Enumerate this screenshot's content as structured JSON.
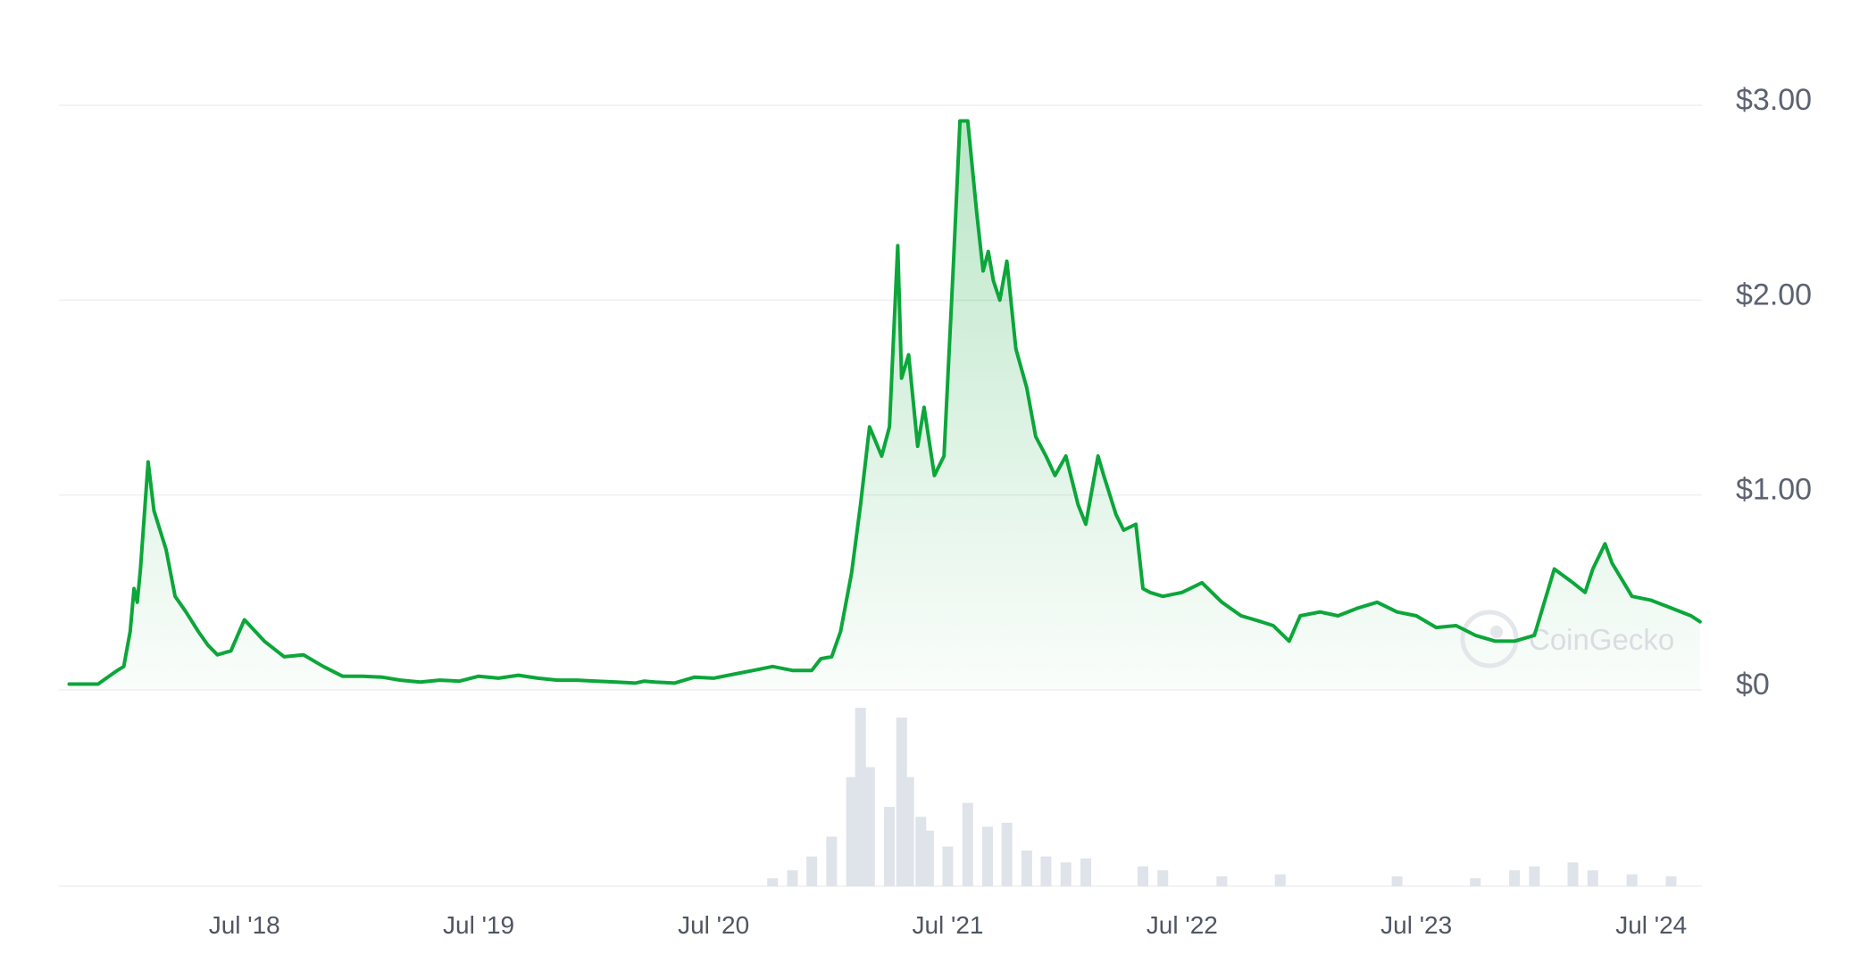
{
  "chart_data": {
    "type": "line",
    "title": "",
    "xlabel": "",
    "ylabel": "",
    "ylim": [
      0,
      3.0
    ],
    "y_ticks": [
      {
        "value": 0,
        "label": "$0"
      },
      {
        "value": 1.0,
        "label": "$1.00"
      },
      {
        "value": 2.0,
        "label": "$2.00"
      },
      {
        "value": 3.0,
        "label": "$3.00"
      }
    ],
    "x_ticks": [
      "Jul '18",
      "Jul '19",
      "Jul '20",
      "Jul '21",
      "Jul '22",
      "Jul '23",
      "Jul '24"
    ],
    "grid": true,
    "watermark": "CoinGecko",
    "colors": {
      "line": "#0ca63a",
      "area_top": "#0ca63a",
      "volume": "#dfe3ea",
      "grid": "#eeeff2",
      "tick_text": "#5c6270"
    },
    "series": [
      {
        "x": [
          "2017-10-01",
          "2017-11-15",
          "2017-12-15",
          "2017-12-25",
          "2018-01-04",
          "2018-01-10",
          "2018-01-15",
          "2018-01-20",
          "2018-02-01",
          "2018-02-10",
          "2018-03-01",
          "2018-03-15",
          "2018-04-01",
          "2018-04-20",
          "2018-05-05",
          "2018-05-20",
          "2018-06-10",
          "2018-07-01",
          "2018-08-01",
          "2018-09-01",
          "2018-10-01",
          "2018-11-01",
          "2018-12-01",
          "2019-01-01",
          "2019-02-01",
          "2019-03-01",
          "2019-04-01",
          "2019-05-01",
          "2019-06-01",
          "2019-07-01",
          "2019-08-01",
          "2019-09-01",
          "2019-10-01",
          "2019-11-01",
          "2019-12-01",
          "2020-01-01",
          "2020-02-01",
          "2020-03-01",
          "2020-03-15",
          "2020-04-01",
          "2020-05-01",
          "2020-06-01",
          "2020-07-01",
          "2020-08-01",
          "2020-09-01",
          "2020-10-01",
          "2020-11-01",
          "2020-11-20",
          "2020-12-01",
          "2020-12-15",
          "2021-01-01",
          "2021-01-15",
          "2021-02-01",
          "2021-02-15",
          "2021-03-01",
          "2021-03-20",
          "2021-04-01",
          "2021-04-14",
          "2021-04-20",
          "2021-05-01",
          "2021-05-15",
          "2021-05-25",
          "2021-06-10",
          "2021-06-25",
          "2021-07-10",
          "2021-07-20",
          "2021-08-01",
          "2021-08-15",
          "2021-08-25",
          "2021-09-02",
          "2021-09-10",
          "2021-09-20",
          "2021-10-01",
          "2021-10-15",
          "2021-11-01",
          "2021-11-15",
          "2021-12-01",
          "2021-12-15",
          "2022-01-01",
          "2022-01-20",
          "2022-02-01",
          "2022-02-20",
          "2022-03-01",
          "2022-03-20",
          "2022-04-01",
          "2022-04-20",
          "2022-05-01",
          "2022-05-12",
          "2022-06-01",
          "2022-07-01",
          "2022-08-01",
          "2022-09-01",
          "2022-10-01",
          "2022-11-01",
          "2022-11-20",
          "2022-12-15",
          "2023-01-01",
          "2023-02-01",
          "2023-03-01",
          "2023-04-01",
          "2023-05-01",
          "2023-06-01",
          "2023-07-01",
          "2023-08-01",
          "2023-09-01",
          "2023-10-01",
          "2023-11-01",
          "2023-12-01",
          "2024-01-01",
          "2024-02-01",
          "2024-03-01",
          "2024-03-20",
          "2024-04-01",
          "2024-04-20",
          "2024-05-01",
          "2024-06-01",
          "2024-07-01",
          "2024-08-01",
          "2024-09-01",
          "2024-09-15"
        ],
        "y": [
          0.03,
          0.03,
          0.1,
          0.12,
          0.3,
          0.52,
          0.45,
          0.62,
          1.17,
          0.92,
          0.72,
          0.48,
          0.4,
          0.3,
          0.23,
          0.18,
          0.2,
          0.36,
          0.25,
          0.17,
          0.18,
          0.12,
          0.07,
          0.07,
          0.065,
          0.05,
          0.04,
          0.05,
          0.045,
          0.07,
          0.06,
          0.075,
          0.06,
          0.05,
          0.05,
          0.045,
          0.04,
          0.035,
          0.045,
          0.04,
          0.035,
          0.065,
          0.06,
          0.08,
          0.1,
          0.12,
          0.1,
          0.1,
          0.1,
          0.16,
          0.17,
          0.3,
          0.6,
          0.95,
          1.35,
          1.2,
          1.35,
          2.28,
          1.6,
          1.72,
          1.25,
          1.45,
          1.1,
          1.2,
          2.2,
          2.92,
          2.92,
          2.45,
          2.15,
          2.25,
          2.1,
          2.0,
          2.2,
          1.75,
          1.55,
          1.3,
          1.2,
          1.1,
          1.2,
          0.95,
          0.85,
          1.2,
          1.1,
          0.9,
          0.82,
          0.85,
          0.52,
          0.5,
          0.48,
          0.5,
          0.55,
          0.45,
          0.38,
          0.35,
          0.33,
          0.25,
          0.38,
          0.4,
          0.38,
          0.42,
          0.45,
          0.4,
          0.38,
          0.32,
          0.33,
          0.28,
          0.25,
          0.25,
          0.28,
          0.62,
          0.55,
          0.5,
          0.62,
          0.75,
          0.65,
          0.48,
          0.46,
          0.42,
          0.38,
          0.35
        ]
      }
    ],
    "volume": {
      "x": [
        "2020-10-01",
        "2020-11-01",
        "2020-12-01",
        "2021-01-01",
        "2021-02-01",
        "2021-02-15",
        "2021-03-01",
        "2021-04-01",
        "2021-04-20",
        "2021-05-01",
        "2021-05-20",
        "2021-06-01",
        "2021-07-01",
        "2021-08-01",
        "2021-09-01",
        "2021-10-01",
        "2021-11-01",
        "2021-12-01",
        "2022-01-01",
        "2022-02-01",
        "2022-05-01",
        "2022-06-01",
        "2022-09-01",
        "2022-12-01",
        "2023-06-01",
        "2023-10-01",
        "2023-12-01",
        "2024-01-01",
        "2024-03-01",
        "2024-04-01",
        "2024-06-01",
        "2024-08-01"
      ],
      "values": [
        0.04,
        0.08,
        0.15,
        0.25,
        0.55,
        0.9,
        0.6,
        0.4,
        0.85,
        0.55,
        0.35,
        0.28,
        0.2,
        0.42,
        0.3,
        0.32,
        0.18,
        0.15,
        0.12,
        0.14,
        0.1,
        0.08,
        0.05,
        0.06,
        0.05,
        0.04,
        0.08,
        0.1,
        0.12,
        0.08,
        0.06,
        0.05
      ]
    }
  }
}
